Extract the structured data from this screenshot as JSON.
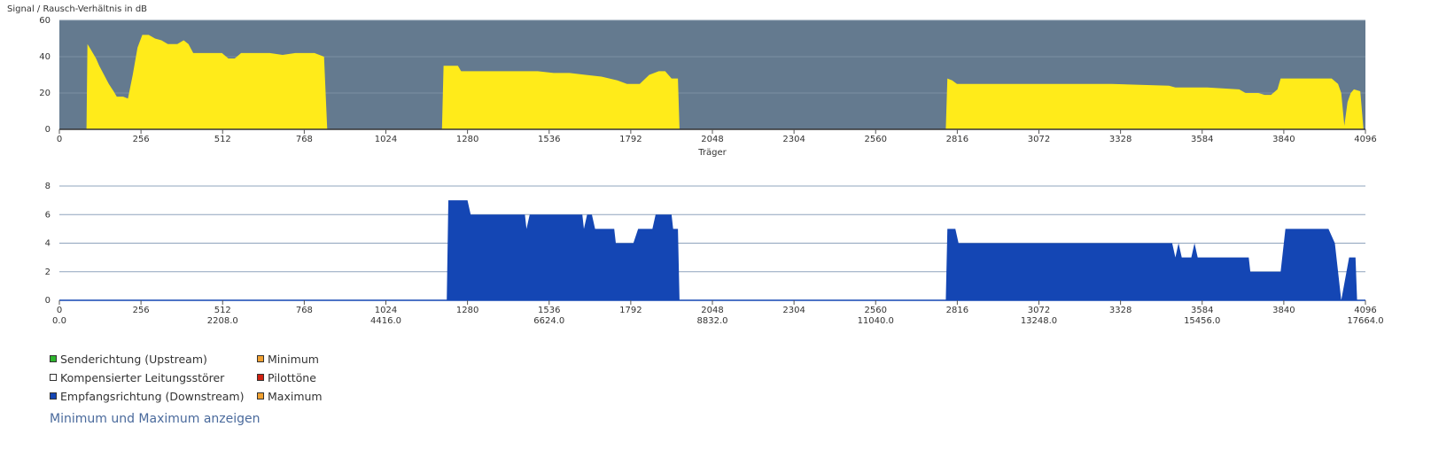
{
  "chart_data": [
    {
      "type": "area",
      "title": "Signal / Rausch-Verhältnis in dB",
      "xlabel": "Träger",
      "background": "#647a8f",
      "color": "#ffeb1a",
      "grid": true,
      "xlim": [
        0,
        4096
      ],
      "xticks": [
        0,
        256,
        512,
        768,
        1024,
        1280,
        1536,
        1792,
        2048,
        2304,
        2560,
        2816,
        3072,
        3328,
        3584,
        3840,
        4096
      ],
      "ylim": [
        0,
        60
      ],
      "yticks": [
        0,
        20,
        40,
        60
      ],
      "x": [
        0,
        85,
        88,
        95,
        105,
        115,
        125,
        140,
        155,
        170,
        180,
        200,
        215,
        230,
        245,
        260,
        280,
        300,
        320,
        340,
        370,
        390,
        405,
        420,
        480,
        510,
        530,
        550,
        570,
        660,
        700,
        740,
        800,
        830,
        840,
        1200,
        1205,
        1250,
        1260,
        1300,
        1400,
        1500,
        1550,
        1600,
        1650,
        1700,
        1750,
        1780,
        1820,
        1850,
        1880,
        1900,
        1920,
        1940,
        1945,
        2780,
        2785,
        2800,
        2815,
        3000,
        3300,
        3480,
        3500,
        3600,
        3700,
        3720,
        3760,
        3780,
        3800,
        3820,
        3830,
        3900,
        3990,
        4010,
        4020,
        4030,
        4040,
        4050,
        4060,
        4080,
        4090,
        4096
      ],
      "values": [
        0,
        0,
        47,
        45,
        42,
        39,
        35,
        30,
        25,
        21,
        18,
        18,
        17,
        30,
        45,
        52,
        52,
        50,
        49,
        47,
        47,
        49,
        47,
        42,
        42,
        42,
        39,
        39,
        42,
        42,
        41,
        42,
        42,
        40,
        0,
        0,
        35,
        35,
        32,
        32,
        32,
        32,
        31,
        31,
        30,
        29,
        27,
        25,
        25,
        30,
        32,
        32,
        28,
        28,
        0,
        0,
        28,
        27,
        25,
        25,
        25,
        24,
        23,
        23,
        22,
        20,
        20,
        19,
        19,
        22,
        28,
        28,
        28,
        25,
        20,
        2,
        15,
        20,
        22,
        21,
        0,
        0
      ]
    },
    {
      "type": "area",
      "color": "#1446b4",
      "grid": true,
      "xlim": [
        0,
        4096
      ],
      "xticks": [
        0,
        256,
        512,
        768,
        1024,
        1280,
        1536,
        1792,
        2048,
        2304,
        2560,
        2816,
        3072,
        3328,
        3584,
        3840,
        4096
      ],
      "x2lim": [
        0,
        17664
      ],
      "x2ticks": [
        {
          "value": 0,
          "label": "0.0"
        },
        {
          "value": 2208,
          "label": "2208.0"
        },
        {
          "value": 4416,
          "label": "4416.0"
        },
        {
          "value": 6624,
          "label": "6624.0"
        },
        {
          "value": 8832,
          "label": "8832.0"
        },
        {
          "value": 11040,
          "label": "11040.0"
        },
        {
          "value": 13248,
          "label": "13248.0"
        },
        {
          "value": 15456,
          "label": "15456.0"
        },
        {
          "value": 17664,
          "label": "17664.0"
        }
      ],
      "ylim": [
        0,
        8
      ],
      "yticks": [
        0,
        2,
        4,
        6,
        8
      ],
      "x": [
        0,
        1215,
        1220,
        1280,
        1290,
        1460,
        1465,
        1475,
        1640,
        1645,
        1655,
        1670,
        1680,
        1740,
        1745,
        1800,
        1815,
        1860,
        1870,
        1920,
        1925,
        1940,
        1945,
        2780,
        2785,
        2810,
        2820,
        3490,
        3500,
        3510,
        3520,
        3550,
        3560,
        3570,
        3730,
        3735,
        3830,
        3845,
        3980,
        4000,
        4020,
        4045,
        4065,
        4070,
        4096
      ],
      "values": [
        0,
        0,
        7,
        7,
        6,
        6,
        5,
        6,
        6,
        5,
        6,
        6,
        5,
        5,
        4,
        4,
        5,
        5,
        6,
        6,
        5,
        5,
        0,
        0,
        5,
        5,
        4,
        4,
        3,
        4,
        3,
        3,
        4,
        3,
        3,
        2,
        2,
        5,
        5,
        4,
        0,
        3,
        3,
        0,
        0
      ]
    }
  ],
  "legend": {
    "items": [
      {
        "label": "Senderichtung (Upstream)",
        "color": "#2db52d"
      },
      {
        "label": "Kompensierter Leitungsstörer",
        "color": "#ffffff"
      },
      {
        "label": "Empfangsrichtung (Downstream)",
        "color": "#1446b4"
      },
      {
        "label": "Minimum",
        "color": "#f0a030"
      },
      {
        "label": "Pilottöne",
        "color": "#d02010"
      },
      {
        "label": "Maximum",
        "color": "#f0a030"
      }
    ],
    "link": "Minimum und Maximum anzeigen"
  }
}
